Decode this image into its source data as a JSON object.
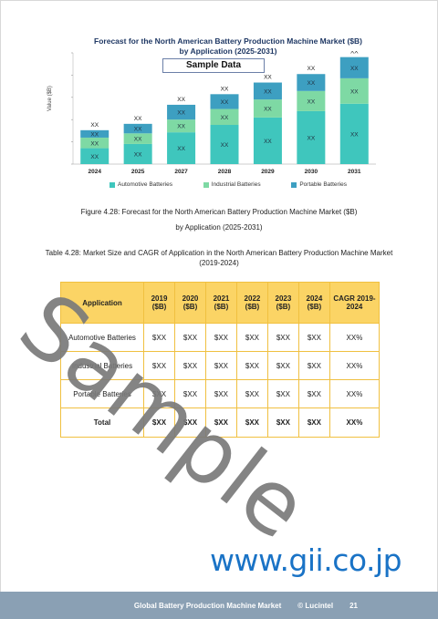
{
  "chart": {
    "title_line1": "Forecast for the North American Battery Production Machine Market ($B)",
    "title_line2": "by Application (2025-2031)",
    "badge": "Sample Data",
    "ylabel": "Value ($B)"
  },
  "chart_data": {
    "type": "bar",
    "stacked": true,
    "categories": [
      "2024",
      "2025",
      "2027",
      "2028",
      "2029",
      "2030",
      "2031"
    ],
    "series": [
      {
        "name": "Automotive Batteries",
        "values": [
          15,
          19,
          30,
          37,
          44,
          50,
          57
        ],
        "labels": [
          "XX",
          "XX",
          "XX",
          "XX",
          "XX",
          "XX",
          "XX"
        ],
        "color": "#3fc6bd"
      },
      {
        "name": "Industrial Batteries",
        "values": [
          10,
          10,
          12,
          15,
          17,
          19,
          24
        ],
        "labels": [
          "XX",
          "XX",
          "XX",
          "XX",
          "XX",
          "XX",
          "XX"
        ],
        "color": "#7ed9a4"
      },
      {
        "name": "Portable Batteries",
        "values": [
          7,
          9,
          14,
          14,
          16,
          16,
          20
        ],
        "labels": [
          "XX",
          "XX",
          "XX",
          "XX",
          "XX",
          "XX",
          "XX"
        ],
        "color": "#3d9fc1"
      }
    ],
    "totals_label": [
      "XX",
      "XX",
      "XX",
      "XX",
      "XX",
      "XX",
      "XX"
    ],
    "ylim": [
      0,
      105
    ],
    "legend_position": "bottom"
  },
  "figure_caption": {
    "line1": "Figure 4.28: Forecast for the North American Battery Production Machine Market ($B)",
    "line2": "by Application (2025-2031)"
  },
  "table_caption": {
    "line1": "Table 4.28: Market Size and CAGR of Application in the North American Battery Production Machine Market",
    "line2": "(2019-2024)"
  },
  "table": {
    "headers": [
      "Application",
      "2019 ($B)",
      "2020 ($B)",
      "2021 ($B)",
      "2022 ($B)",
      "2023 ($B)",
      "2024 ($B)",
      "CAGR 2019-2024"
    ],
    "rows": [
      {
        "app": "Automotive Batteries",
        "values": [
          "$XX",
          "$XX",
          "$XX",
          "$XX",
          "$XX",
          "$XX"
        ],
        "cagr": "XX%"
      },
      {
        "app": "Industrial Batteries",
        "values": [
          "$XX",
          "$XX",
          "$XX",
          "$XX",
          "$XX",
          "$XX"
        ],
        "cagr": "XX%"
      },
      {
        "app": "Portable Batteries",
        "values": [
          "$XX",
          "$XX",
          "$XX",
          "$XX",
          "$XX",
          "$XX"
        ],
        "cagr": "XX%"
      }
    ],
    "total": {
      "app": "Total",
      "values": [
        "$XX",
        "$XX",
        "$XX",
        "$XX",
        "$XX",
        "$XX"
      ],
      "cagr": "XX%"
    }
  },
  "watermark": "Sample",
  "url": "www.gii.co.jp",
  "footer": {
    "title": "Global Battery Production Machine Market",
    "brand": "© Lucintel",
    "page": "21"
  }
}
